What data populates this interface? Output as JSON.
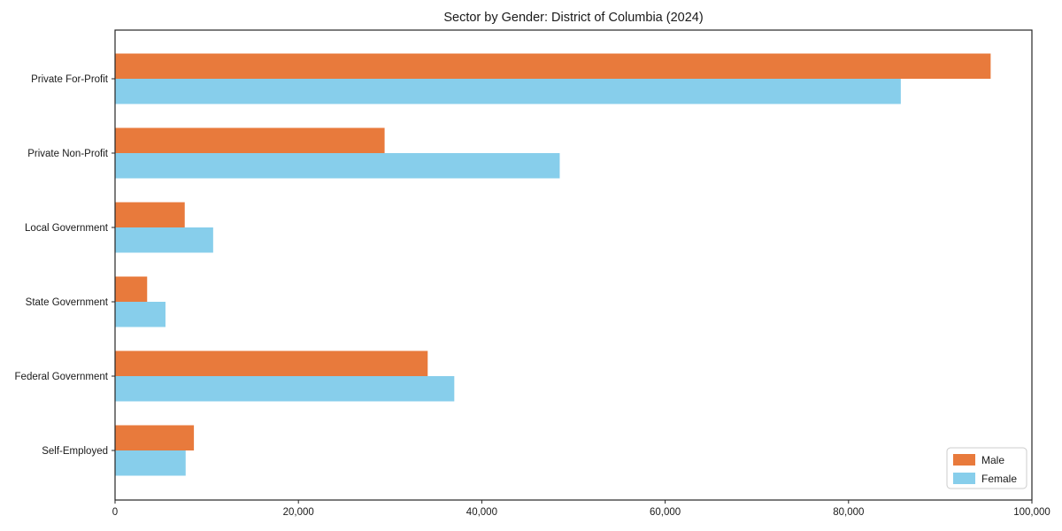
{
  "chart_data": {
    "type": "bar",
    "orientation": "horizontal",
    "title": "Sector by Gender: District of Columbia (2024)",
    "categories": [
      "Private For-Profit",
      "Private Non-Profit",
      "Local Government",
      "State Government",
      "Federal Government",
      "Self-Employed"
    ],
    "series": [
      {
        "name": "Male",
        "color": "#e87a3c",
        "values": [
          95500,
          29400,
          7600,
          3500,
          34100,
          8600
        ]
      },
      {
        "name": "Female",
        "color": "#87ceeb",
        "values": [
          85700,
          48500,
          10700,
          5500,
          37000,
          7700
        ]
      }
    ],
    "xlabel": "",
    "ylabel": "",
    "xlim": [
      0,
      100000
    ],
    "x_ticks": [
      0,
      20000,
      40000,
      60000,
      80000,
      100000
    ],
    "grid": false,
    "legend": {
      "position": "lower-right",
      "labels": [
        "Male",
        "Female"
      ]
    },
    "colors": {
      "axis_border": "#262626",
      "text": "#1a1a1a",
      "legend_border": "#cccccc",
      "background": "#ffffff"
    }
  }
}
